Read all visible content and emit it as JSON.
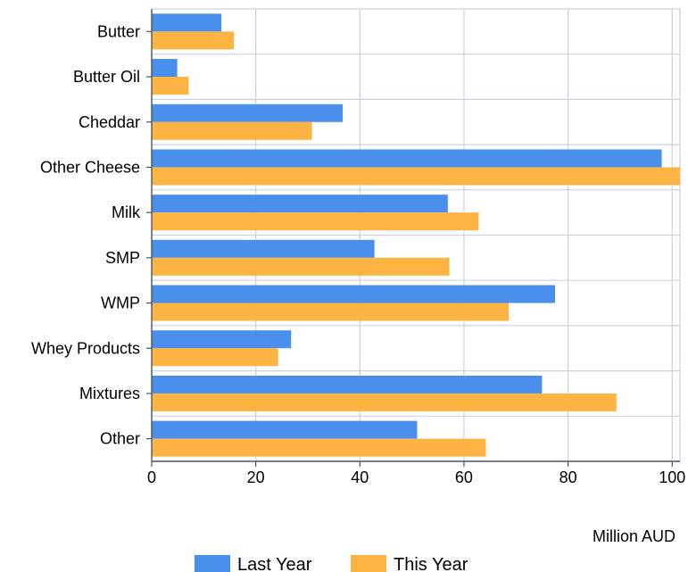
{
  "chart_data": {
    "type": "bar",
    "orientation": "horizontal",
    "categories": [
      "Butter",
      "Butter Oil",
      "Cheddar",
      "Other Cheese",
      "Milk",
      "SMP",
      "WMP",
      "Whey Products",
      "Mixtures",
      "Other"
    ],
    "series": [
      {
        "name": "Last Year",
        "color": "#4a8fec",
        "values": [
          13.4,
          4.9,
          36.7,
          98.0,
          56.9,
          42.8,
          77.5,
          26.8,
          75.0,
          51.0
        ]
      },
      {
        "name": "This Year",
        "color": "#fdb442",
        "values": [
          15.8,
          7.1,
          30.8,
          101.5,
          62.8,
          57.2,
          68.6,
          24.3,
          89.3,
          64.2
        ]
      }
    ],
    "xlabel": "Million AUD",
    "ylabel": "",
    "xlim": [
      0,
      101.5
    ],
    "xticks": [
      "0",
      "20",
      "40",
      "60",
      "80",
      "100"
    ],
    "grid": true,
    "legend_position": "bottom"
  }
}
